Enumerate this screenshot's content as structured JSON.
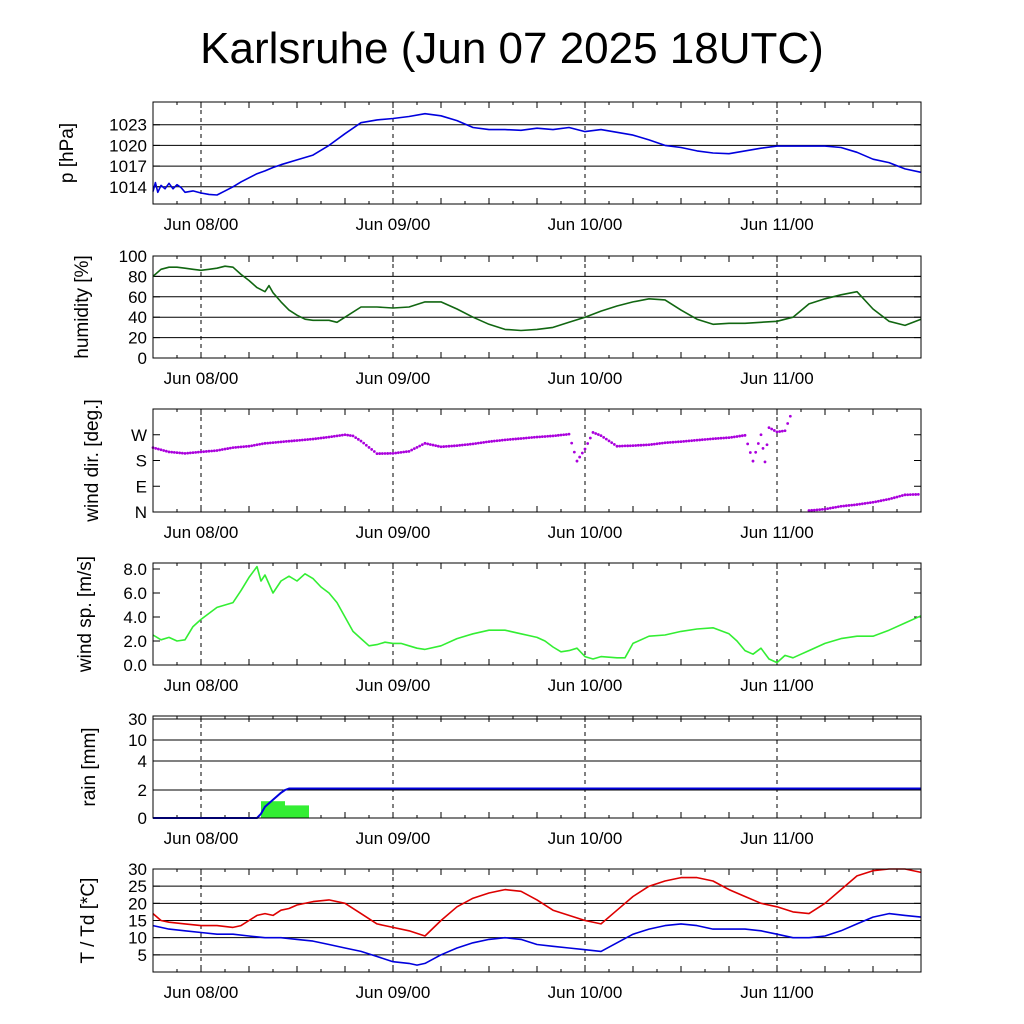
{
  "chart_data": [
    {
      "type": "line",
      "title": "Karlsruhe (Jun 07 2025 18UTC)",
      "x_unit": "hours since Jun 07 18UTC",
      "x_range": [
        0,
        96
      ],
      "x_tick_labels": [
        "Jun 08/00",
        "Jun 09/00",
        "Jun 10/00",
        "Jun 11/00"
      ],
      "x_ticks": [
        6,
        30,
        54,
        78
      ],
      "ylabel": "p [hPa]",
      "ylim": [
        1011.5,
        1026.3
      ],
      "y_tick_labels": [
        "1014",
        "1017",
        "1020",
        "1023"
      ],
      "y_ticks": [
        1014,
        1017,
        1020,
        1023
      ],
      "grid_lines": [
        1014,
        1017,
        1020,
        1023
      ],
      "series": [
        {
          "name": "",
          "color": "#0000dd",
          "x": [
            0,
            0.3,
            0.6,
            1,
            1.5,
            2,
            2.5,
            3,
            3.5,
            4,
            5,
            6,
            7,
            8,
            9,
            10,
            11,
            12,
            13,
            14,
            15,
            16,
            18,
            20,
            22,
            24,
            26,
            28,
            30,
            32,
            34,
            36,
            38,
            40,
            42,
            44,
            46,
            48,
            50,
            52,
            54,
            56,
            58,
            60,
            62,
            64,
            66,
            68,
            70,
            72,
            74,
            76,
            78,
            80,
            82,
            84,
            86,
            88,
            90,
            92,
            94,
            96
          ],
          "y": [
            1013.3,
            1014.6,
            1013.2,
            1014.2,
            1013.7,
            1014.5,
            1013.7,
            1014.3,
            1013.9,
            1013.2,
            1013.4,
            1013.1,
            1012.9,
            1012.8,
            1013.4,
            1014.0,
            1014.7,
            1015.3,
            1015.9,
            1016.3,
            1016.8,
            1017.2,
            1017.9,
            1018.6,
            1020.0,
            1021.7,
            1023.3,
            1023.7,
            1023.9,
            1024.2,
            1024.6,
            1024.3,
            1023.6,
            1022.6,
            1022.3,
            1022.3,
            1022.2,
            1022.5,
            1022.3,
            1022.6,
            1022.0,
            1022.3,
            1021.9,
            1021.5,
            1020.8,
            1020.0,
            1019.7,
            1019.2,
            1018.9,
            1018.8,
            1019.2,
            1019.6,
            1019.9,
            1019.9,
            1019.9,
            1019.9,
            1019.7,
            1019.0,
            1018.0,
            1017.5,
            1016.6,
            1016.1
          ]
        }
      ]
    },
    {
      "type": "line",
      "x_range": [
        0,
        96
      ],
      "x_tick_labels": [
        "Jun 08/00",
        "Jun 09/00",
        "Jun 10/00",
        "Jun 11/00"
      ],
      "x_ticks": [
        6,
        30,
        54,
        78
      ],
      "ylabel": "humidity [%]",
      "ylim": [
        0,
        100
      ],
      "y_tick_labels": [
        "0",
        "20",
        "40",
        "60",
        "80",
        "100"
      ],
      "y_ticks": [
        0,
        20,
        40,
        60,
        80,
        100
      ],
      "grid_lines": [
        20,
        40,
        60,
        80
      ],
      "series": [
        {
          "name": "",
          "color": "#116611",
          "x": [
            0,
            1,
            2,
            3,
            4,
            5,
            6,
            7,
            8,
            9,
            10,
            11,
            12,
            13,
            14,
            14.5,
            15,
            16,
            17,
            18,
            19,
            20,
            21,
            22,
            23,
            24,
            26,
            28,
            30,
            32,
            34,
            36,
            38,
            40,
            42,
            44,
            46,
            48,
            50,
            52,
            54,
            56,
            58,
            60,
            62,
            64,
            66,
            68,
            70,
            72,
            74,
            76,
            78,
            80,
            82,
            84,
            86,
            88,
            90,
            92,
            94,
            96
          ],
          "y": [
            80,
            87,
            89,
            89,
            88,
            87,
            86,
            87,
            88,
            90,
            89,
            82,
            76,
            69,
            65,
            71,
            64,
            55,
            47,
            42,
            38,
            37,
            37,
            37,
            35,
            40,
            50,
            50,
            49,
            50,
            55,
            55,
            48,
            40,
            33,
            28,
            27,
            28,
            30,
            35,
            40,
            46,
            51,
            55,
            58,
            57,
            47,
            38,
            33,
            34,
            34,
            35,
            36,
            40,
            53,
            58,
            62,
            65,
            48,
            36,
            32,
            38
          ]
        }
      ]
    },
    {
      "type": "scatter",
      "x_range": [
        0,
        96
      ],
      "x_tick_labels": [
        "Jun 08/00",
        "Jun 09/00",
        "Jun 10/00",
        "Jun 11/00"
      ],
      "x_ticks": [
        6,
        30,
        54,
        78
      ],
      "ylabel": "wind dir. [deg.]",
      "ylim": [
        0,
        360
      ],
      "y_tick_labels": [
        "N",
        "E",
        "S",
        "W"
      ],
      "y_ticks": [
        0,
        90,
        180,
        270
      ],
      "series": [
        {
          "name": "",
          "color": "#aa00dd",
          "x": [
            0,
            2,
            4,
            6,
            8,
            10,
            12,
            14,
            16,
            18,
            20,
            22,
            24,
            25,
            26,
            28,
            30,
            32,
            34,
            36,
            38,
            40,
            42,
            44,
            46,
            48,
            50,
            52,
            53,
            54,
            55,
            56,
            58,
            60,
            62,
            64,
            66,
            68,
            70,
            72,
            74,
            75,
            76,
            76.5,
            77,
            78,
            79,
            80,
            82,
            84,
            86,
            88,
            90,
            92,
            94,
            96
          ],
          "y": [
            225,
            210,
            205,
            210,
            215,
            225,
            230,
            240,
            245,
            250,
            255,
            262,
            270,
            266,
            248,
            204,
            205,
            212,
            240,
            228,
            232,
            238,
            246,
            252,
            257,
            262,
            266,
            272,
            178,
            220,
            278,
            267,
            230,
            232,
            235,
            242,
            246,
            251,
            256,
            260,
            268,
            178,
            270,
            175,
            295,
            280,
            284,
            360,
            5,
            10,
            20,
            26,
            34,
            45,
            60,
            62
          ]
        }
      ]
    },
    {
      "type": "line",
      "x_range": [
        0,
        96
      ],
      "x_tick_labels": [
        "Jun 08/00",
        "Jun 09/00",
        "Jun 10/00",
        "Jun 11/00"
      ],
      "x_ticks": [
        6,
        30,
        54,
        78
      ],
      "ylabel": "wind sp. [m/s]",
      "ylim": [
        0,
        8.5
      ],
      "y_tick_labels": [
        "0.0",
        "2.0",
        "4.0",
        "6.0",
        "8.0"
      ],
      "y_ticks": [
        0,
        2,
        4,
        6,
        8
      ],
      "series": [
        {
          "name": "",
          "color": "#33ee33",
          "x": [
            0,
            1,
            2,
            3,
            4,
            5,
            6,
            7,
            8,
            9,
            10,
            11,
            12,
            13,
            13.5,
            14,
            15,
            16,
            17,
            18,
            19,
            20,
            21,
            22,
            23,
            24,
            25,
            26,
            27,
            28,
            29,
            30,
            31,
            32,
            33,
            34,
            36,
            38,
            40,
            42,
            44,
            46,
            48,
            49,
            50,
            51,
            52,
            53,
            54,
            55,
            56,
            58,
            59,
            60,
            62,
            64,
            66,
            68,
            70,
            72,
            73,
            74,
            75,
            76,
            77,
            78,
            79,
            80,
            81,
            82,
            84,
            86,
            88,
            90,
            92,
            94,
            96
          ],
          "y": [
            2.5,
            2.1,
            2.3,
            2.0,
            2.1,
            3.2,
            3.8,
            4.3,
            4.8,
            5.0,
            5.2,
            6.2,
            7.3,
            8.2,
            7.0,
            7.5,
            6.0,
            7.0,
            7.4,
            7.0,
            7.6,
            7.2,
            6.5,
            6.0,
            5.2,
            4.0,
            2.8,
            2.2,
            1.6,
            1.7,
            1.9,
            1.8,
            1.8,
            1.6,
            1.4,
            1.3,
            1.6,
            2.2,
            2.6,
            2.9,
            2.9,
            2.6,
            2.3,
            2.0,
            1.5,
            1.1,
            1.2,
            1.4,
            0.7,
            0.5,
            0.7,
            0.6,
            0.6,
            1.8,
            2.4,
            2.5,
            2.8,
            3.0,
            3.1,
            2.6,
            2.0,
            1.2,
            0.9,
            1.4,
            0.5,
            0.2,
            0.8,
            0.6,
            0.9,
            1.2,
            1.8,
            2.2,
            2.4,
            2.4,
            2.9,
            3.5,
            4.1
          ]
        }
      ]
    },
    {
      "type": "bar",
      "x_range": [
        0,
        96
      ],
      "x_tick_labels": [
        "Jun 08/00",
        "Jun 09/00",
        "Jun 10/00",
        "Jun 11/00"
      ],
      "x_ticks": [
        6,
        30,
        54,
        78
      ],
      "ylabel": "rain [mm]",
      "y_tick_labels": [
        "0",
        "2",
        "4",
        "10",
        "30"
      ],
      "y_ticks": [
        0,
        2,
        4,
        10,
        30
      ],
      "grid_lines": [
        2,
        4,
        10,
        30
      ],
      "bars": [
        {
          "x_start": 13.5,
          "x_end": 16.5,
          "value": 1.2,
          "color": "#33ee33"
        },
        {
          "x_start": 16.5,
          "x_end": 19.5,
          "value": 0.9,
          "color": "#33ee33"
        }
      ],
      "series": [
        {
          "name": "",
          "color": "#0000dd",
          "x": [
            0,
            13,
            13.5,
            14,
            15,
            16,
            16.5,
            17,
            96
          ],
          "y": [
            0,
            0,
            0.3,
            0.8,
            1.3,
            1.8,
            2.0,
            2.1,
            2.1
          ]
        }
      ]
    },
    {
      "type": "line",
      "x_range": [
        0,
        96
      ],
      "x_tick_labels": [
        "Jun 08/00",
        "Jun 09/00",
        "Jun 10/00",
        "Jun 11/00"
      ],
      "x_ticks": [
        6,
        30,
        54,
        78
      ],
      "ylabel": "T / Td [*C]",
      "ylim": [
        0,
        30
      ],
      "y_tick_labels": [
        "5",
        "10",
        "15",
        "20",
        "25",
        "30"
      ],
      "y_ticks": [
        5,
        10,
        15,
        20,
        25,
        30
      ],
      "grid_lines": [
        5,
        10,
        15,
        20,
        25,
        30
      ],
      "series": [
        {
          "name": "T",
          "color": "#dd0000",
          "x": [
            0,
            1,
            2,
            4,
            6,
            8,
            10,
            11,
            12,
            13,
            14,
            15,
            16,
            17,
            18,
            20,
            22,
            24,
            26,
            28,
            30,
            32,
            34,
            36,
            38,
            40,
            42,
            44,
            46,
            48,
            50,
            52,
            54,
            56,
            58,
            60,
            62,
            64,
            66,
            68,
            70,
            72,
            74,
            76,
            78,
            80,
            82,
            84,
            86,
            88,
            90,
            92,
            94,
            96
          ],
          "y": [
            17,
            15,
            14.5,
            14,
            13.5,
            13.5,
            13,
            13.5,
            15,
            16.5,
            17,
            16.5,
            18,
            18.5,
            19.5,
            20.5,
            21,
            20,
            17,
            14,
            13,
            12,
            10.5,
            15,
            19,
            21.5,
            23,
            24,
            23.5,
            21,
            18,
            16.5,
            15,
            14,
            18,
            22,
            25,
            26.5,
            27.5,
            27.5,
            26.5,
            24,
            22,
            20,
            19,
            17.5,
            17,
            20,
            24,
            28,
            29.5,
            30,
            30,
            29
          ]
        },
        {
          "name": "Td",
          "color": "#0000dd",
          "x": [
            0,
            2,
            4,
            6,
            8,
            10,
            12,
            14,
            16,
            18,
            20,
            22,
            24,
            26,
            28,
            30,
            32,
            33,
            34,
            36,
            38,
            40,
            42,
            44,
            46,
            48,
            50,
            52,
            54,
            56,
            58,
            60,
            62,
            64,
            66,
            68,
            70,
            72,
            74,
            76,
            78,
            80,
            82,
            84,
            86,
            88,
            90,
            92,
            94,
            96
          ],
          "y": [
            13.5,
            12.5,
            12,
            11.5,
            11,
            11,
            10.5,
            10,
            10,
            9.5,
            9,
            8,
            7,
            6,
            4.5,
            3,
            2.5,
            2,
            2.5,
            5,
            7,
            8.5,
            9.5,
            10,
            9.5,
            8,
            7.5,
            7,
            6.5,
            6,
            8.5,
            11,
            12.5,
            13.5,
            14,
            13.5,
            12.5,
            12.5,
            12.5,
            12,
            11,
            10,
            10,
            10.5,
            12,
            14,
            16,
            17,
            16.5,
            16
          ]
        }
      ]
    }
  ]
}
